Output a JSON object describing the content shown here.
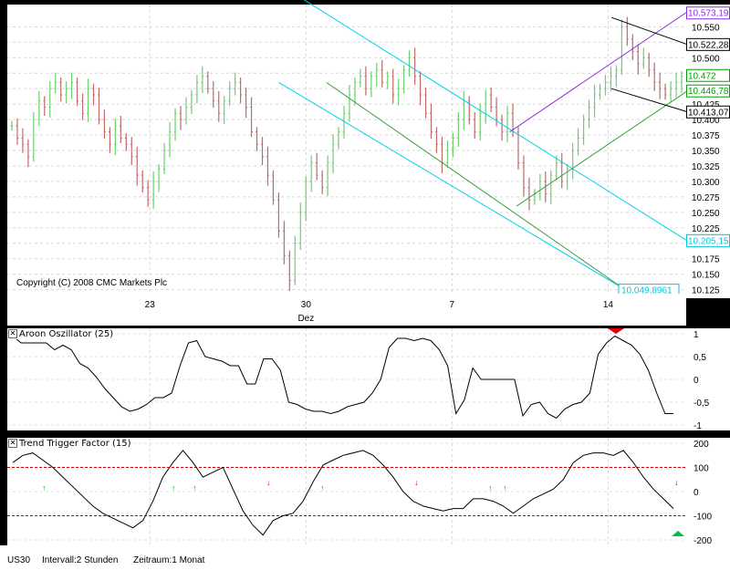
{
  "chart_data": [
    {
      "type": "candlestick",
      "ylim": [
        10.12,
        10.58
      ],
      "x_tick_labels": [
        "23",
        "30",
        "7",
        "14"
      ],
      "x_sublabel": "Dez",
      "y_tick_labels": [
        "10.550",
        "10.525",
        "10.500",
        "10.475",
        "10.450",
        "10.425",
        "10.400",
        "10.375",
        "10.350",
        "10.325",
        "10.300",
        "10.275",
        "10.250",
        "10.225",
        "10.200",
        "10.175",
        "10.150",
        "10.125"
      ],
      "price_badges": [
        {
          "label": "10.573,19",
          "value": 10.573,
          "color": "#8a2be2"
        },
        {
          "label": "10.522,28",
          "value": 10.522,
          "color": "#000000"
        },
        {
          "label": "10.472",
          "value": 10.472,
          "color": "#00a000"
        },
        {
          "label": "10.446,78",
          "value": 10.447,
          "color": "#00a000"
        },
        {
          "label": "10.413,07",
          "value": 10.413,
          "color": "#000000"
        },
        {
          "label": "10.205,15",
          "value": 10.205,
          "color": "#00c8e0"
        },
        {
          "label": "10.049,8961",
          "value": 10.125,
          "color": "#00c8e0"
        }
      ],
      "closes": [
        10.39,
        10.37,
        10.36,
        10.34,
        10.4,
        10.43,
        10.42,
        10.45,
        10.46,
        10.44,
        10.45,
        10.46,
        10.43,
        10.41,
        10.45,
        10.44,
        10.4,
        10.38,
        10.36,
        10.39,
        10.37,
        10.36,
        10.34,
        10.31,
        10.29,
        10.27,
        10.3,
        10.32,
        10.35,
        10.38,
        10.41,
        10.4,
        10.42,
        10.44,
        10.46,
        10.47,
        10.45,
        10.43,
        10.41,
        10.43,
        10.45,
        10.46,
        10.44,
        10.42,
        10.38,
        10.36,
        10.34,
        10.31,
        10.27,
        10.22,
        10.18,
        10.14,
        10.2,
        10.25,
        10.3,
        10.33,
        10.31,
        10.29,
        10.33,
        10.36,
        10.38,
        10.41,
        10.44,
        10.46,
        10.47,
        10.45,
        10.47,
        10.48,
        10.46,
        10.47,
        10.44,
        10.45,
        10.48,
        10.5,
        10.47,
        10.44,
        10.41,
        10.38,
        10.36,
        10.33,
        10.35,
        10.37,
        10.4,
        10.43,
        10.4,
        10.38,
        10.41,
        10.44,
        10.42,
        10.4,
        10.38,
        10.41,
        10.38,
        10.33,
        10.29,
        10.27,
        10.28,
        10.3,
        10.28,
        10.31,
        10.33,
        10.3,
        10.32,
        10.35,
        10.37,
        10.4,
        10.42,
        10.44,
        10.45,
        10.46,
        10.47,
        10.48,
        10.55,
        10.53,
        10.51,
        10.49,
        10.5,
        10.48,
        10.46,
        10.45,
        10.44,
        10.45,
        10.46,
        10.47
      ],
      "trendlines": [
        {
          "name": "cyan-upper",
          "color": "#00d0e8",
          "from": [
            0.37,
            10.64
          ],
          "to": [
            1.0,
            10.205
          ]
        },
        {
          "name": "cyan-lower",
          "color": "#00d0e8",
          "from": [
            0.4,
            10.46
          ],
          "to": [
            0.91,
            10.125
          ]
        },
        {
          "name": "green-channel-low",
          "color": "#3aa03a",
          "from": [
            0.47,
            10.46
          ],
          "to": [
            0.91,
            10.125
          ]
        },
        {
          "name": "green-rise",
          "color": "#3aa03a",
          "from": [
            0.75,
            10.26
          ],
          "to": [
            1.0,
            10.445
          ]
        },
        {
          "name": "purple-rise",
          "color": "#8a2be2",
          "from": [
            0.74,
            10.38
          ],
          "to": [
            1.0,
            10.573
          ]
        },
        {
          "name": "black-upper",
          "color": "#000000",
          "from": [
            0.89,
            10.565
          ],
          "to": [
            1.0,
            10.522
          ]
        },
        {
          "name": "black-lower",
          "color": "#000000",
          "from": [
            0.89,
            10.45
          ],
          "to": [
            1.0,
            10.413
          ]
        }
      ]
    },
    {
      "type": "line",
      "title": "Aroon Oszillator (25)",
      "ylim": [
        -1,
        1
      ],
      "y_tick_labels": [
        "1",
        "0,5",
        "0",
        "-0,5",
        "-1"
      ],
      "values": [
        0.95,
        0.8,
        0.8,
        0.8,
        0.8,
        0.65,
        0.75,
        0.65,
        0.35,
        0.25,
        0.05,
        -0.2,
        -0.4,
        -0.6,
        -0.7,
        -0.65,
        -0.55,
        -0.4,
        -0.4,
        -0.3,
        0.3,
        0.8,
        0.85,
        0.5,
        0.45,
        0.4,
        0.3,
        0.3,
        -0.1,
        -0.1,
        0.45,
        0.45,
        0.2,
        -0.5,
        -0.55,
        -0.65,
        -0.7,
        -0.7,
        -0.75,
        -0.7,
        -0.6,
        -0.55,
        -0.5,
        -0.3,
        0.0,
        0.7,
        0.9,
        0.9,
        0.85,
        0.9,
        0.85,
        0.65,
        0.3,
        -0.75,
        -0.45,
        0.25,
        0.0,
        0.0,
        0.0,
        0.0,
        0.0,
        -0.8,
        -0.55,
        -0.5,
        -0.75,
        -0.85,
        -0.65,
        -0.55,
        -0.5,
        -0.3,
        0.55,
        0.8,
        0.95,
        0.85,
        0.75,
        0.55,
        0.2,
        -0.3,
        -0.75,
        -0.75
      ]
    },
    {
      "type": "line",
      "title": "Trend Trigger Factor (15)",
      "ylim": [
        -200,
        200
      ],
      "y_tick_labels": [
        "200",
        "100",
        "0",
        "-100",
        "-200"
      ],
      "reference_lines": [
        100,
        -100
      ],
      "values": [
        120,
        150,
        160,
        130,
        100,
        60,
        20,
        -20,
        -60,
        -90,
        -110,
        -130,
        -150,
        -120,
        -40,
        60,
        120,
        170,
        120,
        60,
        80,
        100,
        10,
        -80,
        -140,
        -180,
        -120,
        -100,
        -90,
        -40,
        40,
        110,
        130,
        150,
        160,
        170,
        150,
        110,
        60,
        0,
        -40,
        -60,
        -70,
        -80,
        -70,
        -70,
        -30,
        -30,
        -40,
        -60,
        -90,
        -60,
        -30,
        -10,
        10,
        50,
        120,
        150,
        160,
        160,
        150,
        170,
        120,
        60,
        10,
        -30,
        -70
      ]
    }
  ],
  "copyright": "Copyright (C) 2008 CMC Markets Plc",
  "footer": {
    "symbol": "US30",
    "interval": "Intervall:2 Stunden",
    "period": "Zeitraum:1 Monat"
  },
  "pane_close_glyph": "✕"
}
